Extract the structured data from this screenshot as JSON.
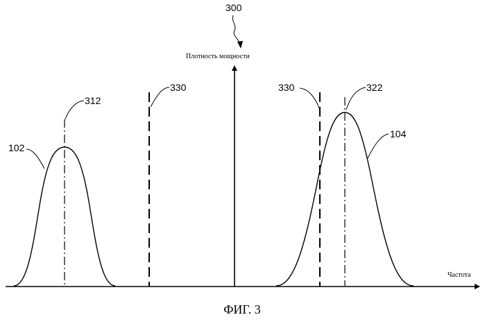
{
  "figure": {
    "number_label": "300",
    "caption": "ФИГ. 3",
    "y_axis_label": "Плотность мощности",
    "x_axis_label": "Частота"
  },
  "curves": [
    {
      "ref": "102",
      "peak_ref": "312"
    },
    {
      "ref": "104",
      "peak_ref": "322"
    }
  ],
  "boundary_lines": [
    {
      "ref": "330"
    },
    {
      "ref": "330"
    }
  ]
}
